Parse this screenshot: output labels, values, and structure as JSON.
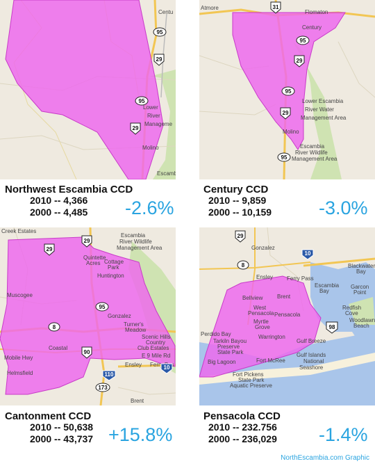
{
  "colors": {
    "accent": "#2aa4e0",
    "region_fill": "#ee66ee",
    "land": "#efeae0",
    "water": "#a9c5ea",
    "forest": "#cfe3b2",
    "road": "#f2c653"
  },
  "panels": [
    {
      "title": "Northwest Escambia CCD",
      "row_2010": "2010 -- 4,366",
      "row_2000": "2000 -- 4,485",
      "change": "-2.6%",
      "map_labels": {
        "a": "Centu",
        "b": "Lower",
        "c": "River",
        "d": "Manageme",
        "e": "Molino",
        "f": "Escambi",
        "s1": "95",
        "s2": "29",
        "s3": "95",
        "s4": "29"
      }
    },
    {
      "title": "Century CCD",
      "row_2010": "2010 -- 9,859",
      "row_2000": "2000 -- 10,159",
      "change": "-3.0%",
      "map_labels": {
        "a": "Atmore",
        "b": "Flomaton",
        "c": "Century",
        "d": "Lower Escambia",
        "e": "River Water",
        "f": "Management Area",
        "g": "Molino",
        "h": "Escambia",
        "i": "River Wildlife",
        "j": "Management Area",
        "s1": "31",
        "s2": "95",
        "s3": "29",
        "s4": "95",
        "s5": "29",
        "s6": "95"
      }
    },
    {
      "title": "Cantonment CCD",
      "row_2010": "2010 -- 50,638",
      "row_2000": "2000 -- 43,737",
      "change": "+15.8%",
      "map_labels": {
        "a": "Creek Estates",
        "b": "Escambia",
        "c": "River Wildlife",
        "d": "Management Area",
        "e": "Quintette",
        "f": "Acres",
        "g": "Cottage",
        "h": "Park",
        "i": "Huntington",
        "j": "Muscogee",
        "k": "Gonzalez",
        "l": "Turner's",
        "m": "Meadow",
        "n": "Scenic Hills",
        "o": "Country",
        "p": "Club Estates",
        "q": "Coastal",
        "r": "Ensley",
        "s": "Ferry Pas",
        "t": "Helmsfield",
        "u": "Brent",
        "v": "E 9 Mile Rd",
        "w": "Mobile Hwy",
        "s1": "29",
        "s2": "29",
        "s3": "95",
        "s4": "8",
        "s5": "90",
        "s6": "110",
        "s7": "173",
        "s8": "10"
      }
    },
    {
      "title": "Pensacola CCD",
      "row_2010": "2010 -- 232.756",
      "row_2000": "2000 -- 236,029",
      "change": "-1.4%",
      "map_labels": {
        "a": "Gonzalez",
        "b": "Ensley",
        "c": "Ferry Pass",
        "d": "Escambia",
        "e": "Bay",
        "f": "Bellview",
        "g": "Brent",
        "h": "West",
        "i": "Pensacola",
        "j": "Pensacola",
        "k": "Myrtle",
        "l": "Grove",
        "m": "Warrington",
        "n": "Perdido Bay",
        "o": "Tarkiln Bayou",
        "p": "Preserve",
        "q": "State Park",
        "r": "Big Lagoon",
        "s": "Fort McRee",
        "t": "Gulf Breeze",
        "u": "Gulf Islands",
        "v": "National",
        "w": "Seashore",
        "x": "Fort Pickens",
        "y": "State Park",
        "z": "Aquatic Preserve",
        "aa": "Blackwater",
        "ab": "Bay",
        "ac": "Garcon",
        "ad": "Point",
        "ae": "Redfish",
        "af": "Cove",
        "ag": "Woodlawn",
        "ah": "Beach",
        "s1": "29",
        "s2": "8",
        "s3": "10",
        "s4": "98"
      }
    }
  ],
  "credit": "NorthEscambia.com Graphic"
}
